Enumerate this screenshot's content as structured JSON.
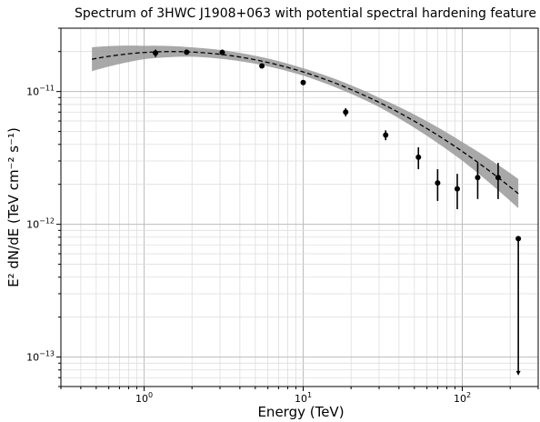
{
  "chart_data": {
    "type": "scatter",
    "title": "Spectrum of 3HWC J1908+063 with potential spectral hardening feature",
    "xlabel": "Energy (TeV)",
    "ylabel": "E² dN/dE (TeV cm⁻² s⁻¹)",
    "xscale": "log",
    "yscale": "log",
    "xlim": [
      0.3,
      300
    ],
    "ylim": [
      6e-14,
      3e-11
    ],
    "grid": true,
    "x_ticks": [
      {
        "value": 1,
        "base": "10",
        "exp": "0"
      },
      {
        "value": 10,
        "base": "10",
        "exp": "1"
      },
      {
        "value": 100,
        "base": "10",
        "exp": "2"
      }
    ],
    "y_ticks": [
      {
        "value": 1e-13,
        "base": "10",
        "exp": "−13"
      },
      {
        "value": 1e-12,
        "base": "10",
        "exp": "−12"
      },
      {
        "value": 1e-11,
        "base": "10",
        "exp": "−11"
      }
    ],
    "series": [
      {
        "kind": "points",
        "color": "#000000",
        "points": [
          {
            "x": 1.18,
            "y": 1.95e-11,
            "y_low": 1.82e-11,
            "y_high": 2.07e-11
          },
          {
            "x": 1.85,
            "y": 1.98e-11,
            "y_low": 1.9e-11,
            "y_high": 2.07e-11
          },
          {
            "x": 3.1,
            "y": 1.97e-11,
            "y_low": 1.88e-11,
            "y_high": 2.07e-11
          },
          {
            "x": 5.5,
            "y": 1.56e-11,
            "y_low": 1.5e-11,
            "y_high": 1.62e-11
          },
          {
            "x": 10.0,
            "y": 1.17e-11,
            "y_low": 1.13e-11,
            "y_high": 1.21e-11
          },
          {
            "x": 18.5,
            "y": 7e-12,
            "y_low": 6.5e-12,
            "y_high": 7.5e-12
          },
          {
            "x": 33.0,
            "y": 4.7e-12,
            "y_low": 4.3e-12,
            "y_high": 5.1e-12
          },
          {
            "x": 53.0,
            "y": 3.2e-12,
            "y_low": 2.6e-12,
            "y_high": 3.8e-12
          },
          {
            "x": 70.0,
            "y": 2.05e-12,
            "y_low": 1.5e-12,
            "y_high": 2.6e-12
          },
          {
            "x": 93.0,
            "y": 1.85e-12,
            "y_low": 1.3e-12,
            "y_high": 2.4e-12
          },
          {
            "x": 125.0,
            "y": 2.25e-12,
            "y_low": 1.55e-12,
            "y_high": 2.9e-12
          },
          {
            "x": 168.0,
            "y": 2.25e-12,
            "y_low": 1.55e-12,
            "y_high": 2.9e-12
          }
        ]
      },
      {
        "kind": "upper_limit",
        "color": "#000000",
        "points": [
          {
            "x": 225.0,
            "y": 7.8e-13,
            "y_low": 7.5e-14
          }
        ]
      },
      {
        "kind": "model_curve",
        "style": "dashed",
        "color": "#000000",
        "model": "log-parabola",
        "parameters": {
          "norm": 2e-11,
          "e_peak": 1.5,
          "beta": 0.226
        },
        "x_range": [
          0.47,
          225
        ]
      },
      {
        "kind": "uncertainty_band",
        "color": "#999999",
        "half_width_dex": {
          "x": [
            0.47,
            1.0,
            2.0,
            5.0,
            10.0,
            30.0,
            100.0,
            225.0
          ],
          "value": [
            0.09,
            0.05,
            0.035,
            0.03,
            0.028,
            0.035,
            0.07,
            0.11
          ]
        }
      }
    ]
  }
}
